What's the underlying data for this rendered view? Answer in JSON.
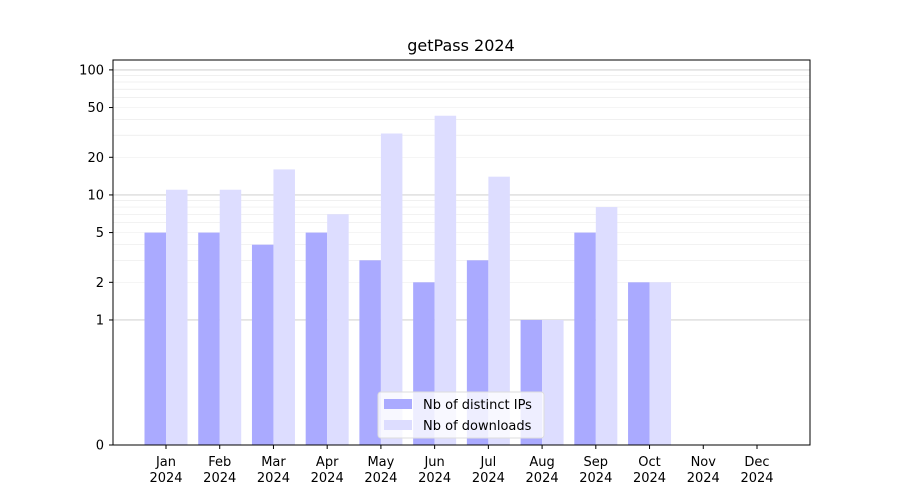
{
  "chart_data": {
    "type": "bar",
    "title": "getPass 2024",
    "xlabel": "",
    "ylabel": "",
    "yscale": "symlog",
    "ylim": [
      0,
      120
    ],
    "yticks": [
      0,
      1,
      2,
      5,
      10,
      20,
      50,
      100
    ],
    "grid": true,
    "legend_position": "bottom-center",
    "categories": [
      [
        "Jan",
        "2024"
      ],
      [
        "Feb",
        "2024"
      ],
      [
        "Mar",
        "2024"
      ],
      [
        "Apr",
        "2024"
      ],
      [
        "May",
        "2024"
      ],
      [
        "Jun",
        "2024"
      ],
      [
        "Jul",
        "2024"
      ],
      [
        "Aug",
        "2024"
      ],
      [
        "Sep",
        "2024"
      ],
      [
        "Oct",
        "2024"
      ],
      [
        "Nov",
        "2024"
      ],
      [
        "Dec",
        "2024"
      ]
    ],
    "series": [
      {
        "name": "Nb of distinct IPs",
        "color": "#aaaaff",
        "values": [
          5,
          5,
          4,
          5,
          3,
          2,
          3,
          1,
          5,
          2,
          0,
          0
        ]
      },
      {
        "name": "Nb of downloads",
        "color": "#ddddff",
        "values": [
          11,
          11,
          16,
          7,
          31,
          43,
          14,
          1,
          8,
          2,
          0,
          0
        ]
      }
    ]
  }
}
